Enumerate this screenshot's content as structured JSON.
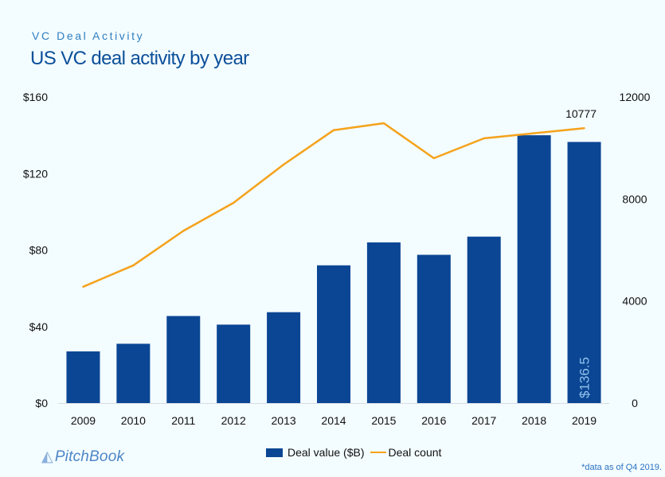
{
  "header": {
    "kicker": "VC Deal Activity",
    "title": "US VC deal activity by year"
  },
  "chart_data": {
    "type": "bar+line",
    "categories": [
      "2009",
      "2010",
      "2011",
      "2012",
      "2013",
      "2014",
      "2015",
      "2016",
      "2017",
      "2018",
      "2019"
    ],
    "series": [
      {
        "name": "Deal value ($B)",
        "type": "bar",
        "axis": "left",
        "color": "#0b4694",
        "values": [
          27.0,
          31.0,
          45.5,
          41.0,
          47.5,
          72.0,
          84.0,
          77.5,
          87.0,
          140.0,
          136.5
        ]
      },
      {
        "name": "Deal count",
        "type": "line",
        "axis": "right",
        "color": "#f5a21b",
        "values": [
          4560,
          5400,
          6750,
          7850,
          9350,
          10700,
          10970,
          9600,
          10380,
          10580,
          10777
        ]
      }
    ],
    "y_left": {
      "ticks": [
        "$0",
        "$40",
        "$80",
        "$120",
        "$160"
      ],
      "range": [
        0,
        160
      ]
    },
    "y_right": {
      "ticks": [
        "0",
        "4000",
        "8000",
        "12000"
      ],
      "range": [
        0,
        12000
      ]
    },
    "data_labels": {
      "bar_2019": "$136.5",
      "line_2019": "10777"
    },
    "legend_position": "bottom-center"
  },
  "legend": {
    "bar_label": "Deal value ($B)",
    "line_label": "Deal count"
  },
  "branding": {
    "logo_text": "PitchBook",
    "logo_mark": "◭"
  },
  "footnote": "*data as of Q4 2019."
}
